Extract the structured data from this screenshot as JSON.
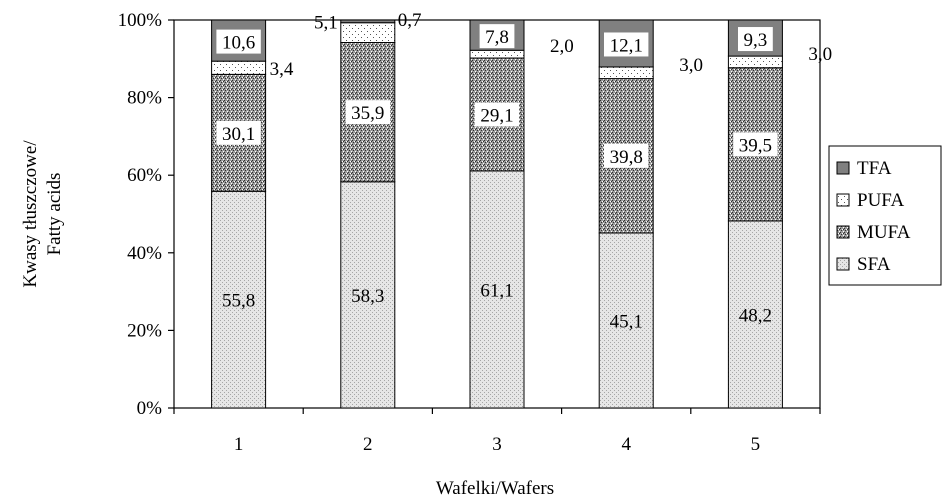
{
  "chart_data": {
    "type": "bar",
    "stacked": true,
    "percent_stacked": true,
    "categories": [
      "1",
      "2",
      "3",
      "4",
      "5"
    ],
    "series": [
      {
        "name": "SFA",
        "values": [
          55.8,
          58.3,
          61.1,
          45.1,
          48.2
        ],
        "labels": [
          "55,8",
          "58,3",
          "61,1",
          "45,1",
          "48,2"
        ],
        "color": "#d9d9d9",
        "pattern": "light-dots"
      },
      {
        "name": "MUFA",
        "values": [
          30.1,
          35.9,
          29.1,
          39.8,
          39.5
        ],
        "labels": [
          "30,1",
          "35,9",
          "29,1",
          "39,8",
          "39,5"
        ],
        "color": "#8c8c8c",
        "pattern": "dense-cross"
      },
      {
        "name": "PUFA",
        "values": [
          3.4,
          5.1,
          2.0,
          3.0,
          3.0
        ],
        "labels": [
          "3,4",
          "5,1",
          "2,0",
          "3,0",
          "3,0"
        ],
        "color": "#f0f0f0",
        "pattern": "sparse-dots"
      },
      {
        "name": "TFA",
        "values": [
          10.6,
          0.7,
          7.8,
          12.1,
          9.3
        ],
        "labels": [
          "10,6",
          "0,7",
          "7,8",
          "12,1",
          "9,3"
        ],
        "color": "#808080",
        "pattern": "solid"
      }
    ],
    "xlabel": "Wafelki/Wafers",
    "ylabel": [
      "Kwasy tłuszczowe/",
      "Fatty acids"
    ],
    "yticks": [
      "0%",
      "20%",
      "40%",
      "60%",
      "80%",
      "100%"
    ],
    "ylim": [
      0,
      100
    ],
    "grid": false,
    "legend_position": "right",
    "legend_order": [
      "TFA",
      "PUFA",
      "MUFA",
      "SFA"
    ]
  }
}
